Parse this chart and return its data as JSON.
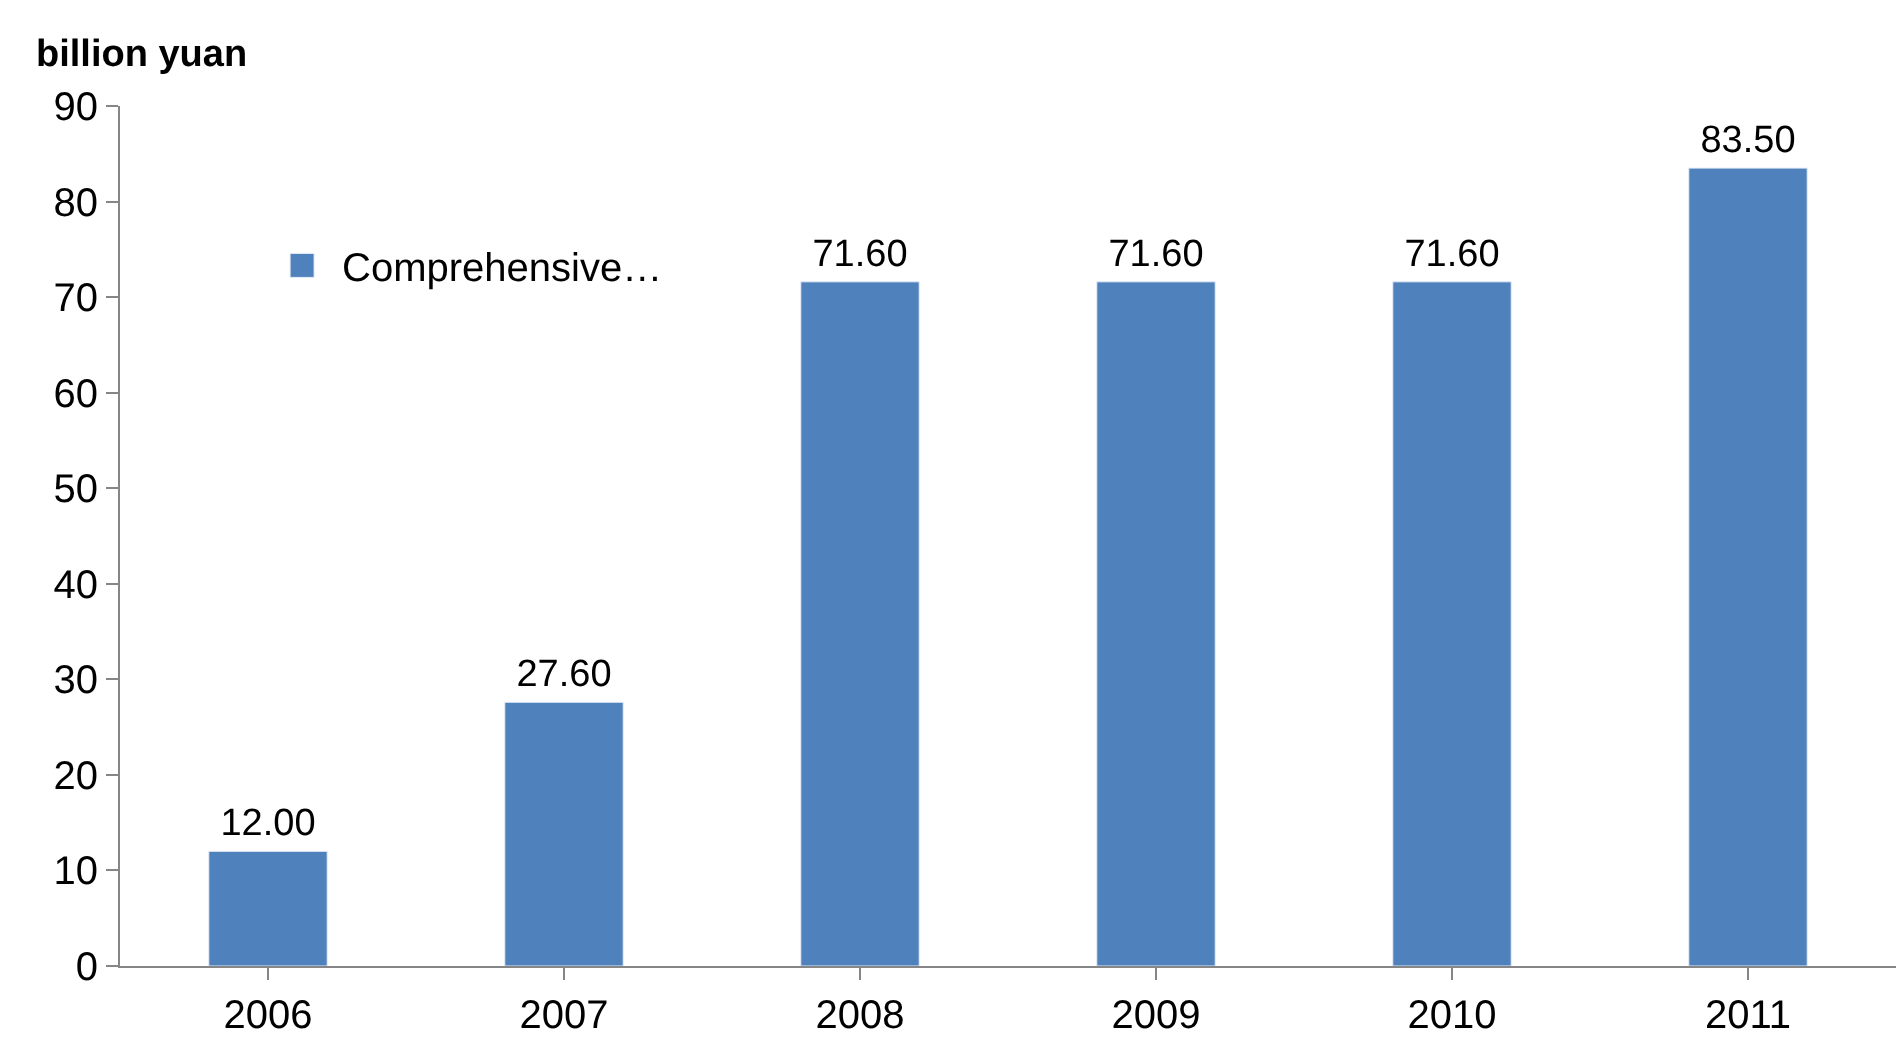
{
  "chart_data": {
    "type": "bar",
    "ylabel": "billion yuan",
    "categories": [
      "2006",
      "2007",
      "2008",
      "2009",
      "2010",
      "2011"
    ],
    "series": [
      {
        "name": "Comprehensive…",
        "color": "#4f81bd",
        "values": [
          12.0,
          27.6,
          71.6,
          71.6,
          71.6,
          83.5
        ],
        "value_labels": [
          "12.00",
          "27.60",
          "71.60",
          "71.60",
          "71.60",
          "83.50"
        ]
      }
    ],
    "ylim": [
      0,
      90
    ],
    "yticks": [
      0,
      10,
      20,
      30,
      40,
      50,
      60,
      70,
      80,
      90
    ],
    "legend": "top left"
  }
}
